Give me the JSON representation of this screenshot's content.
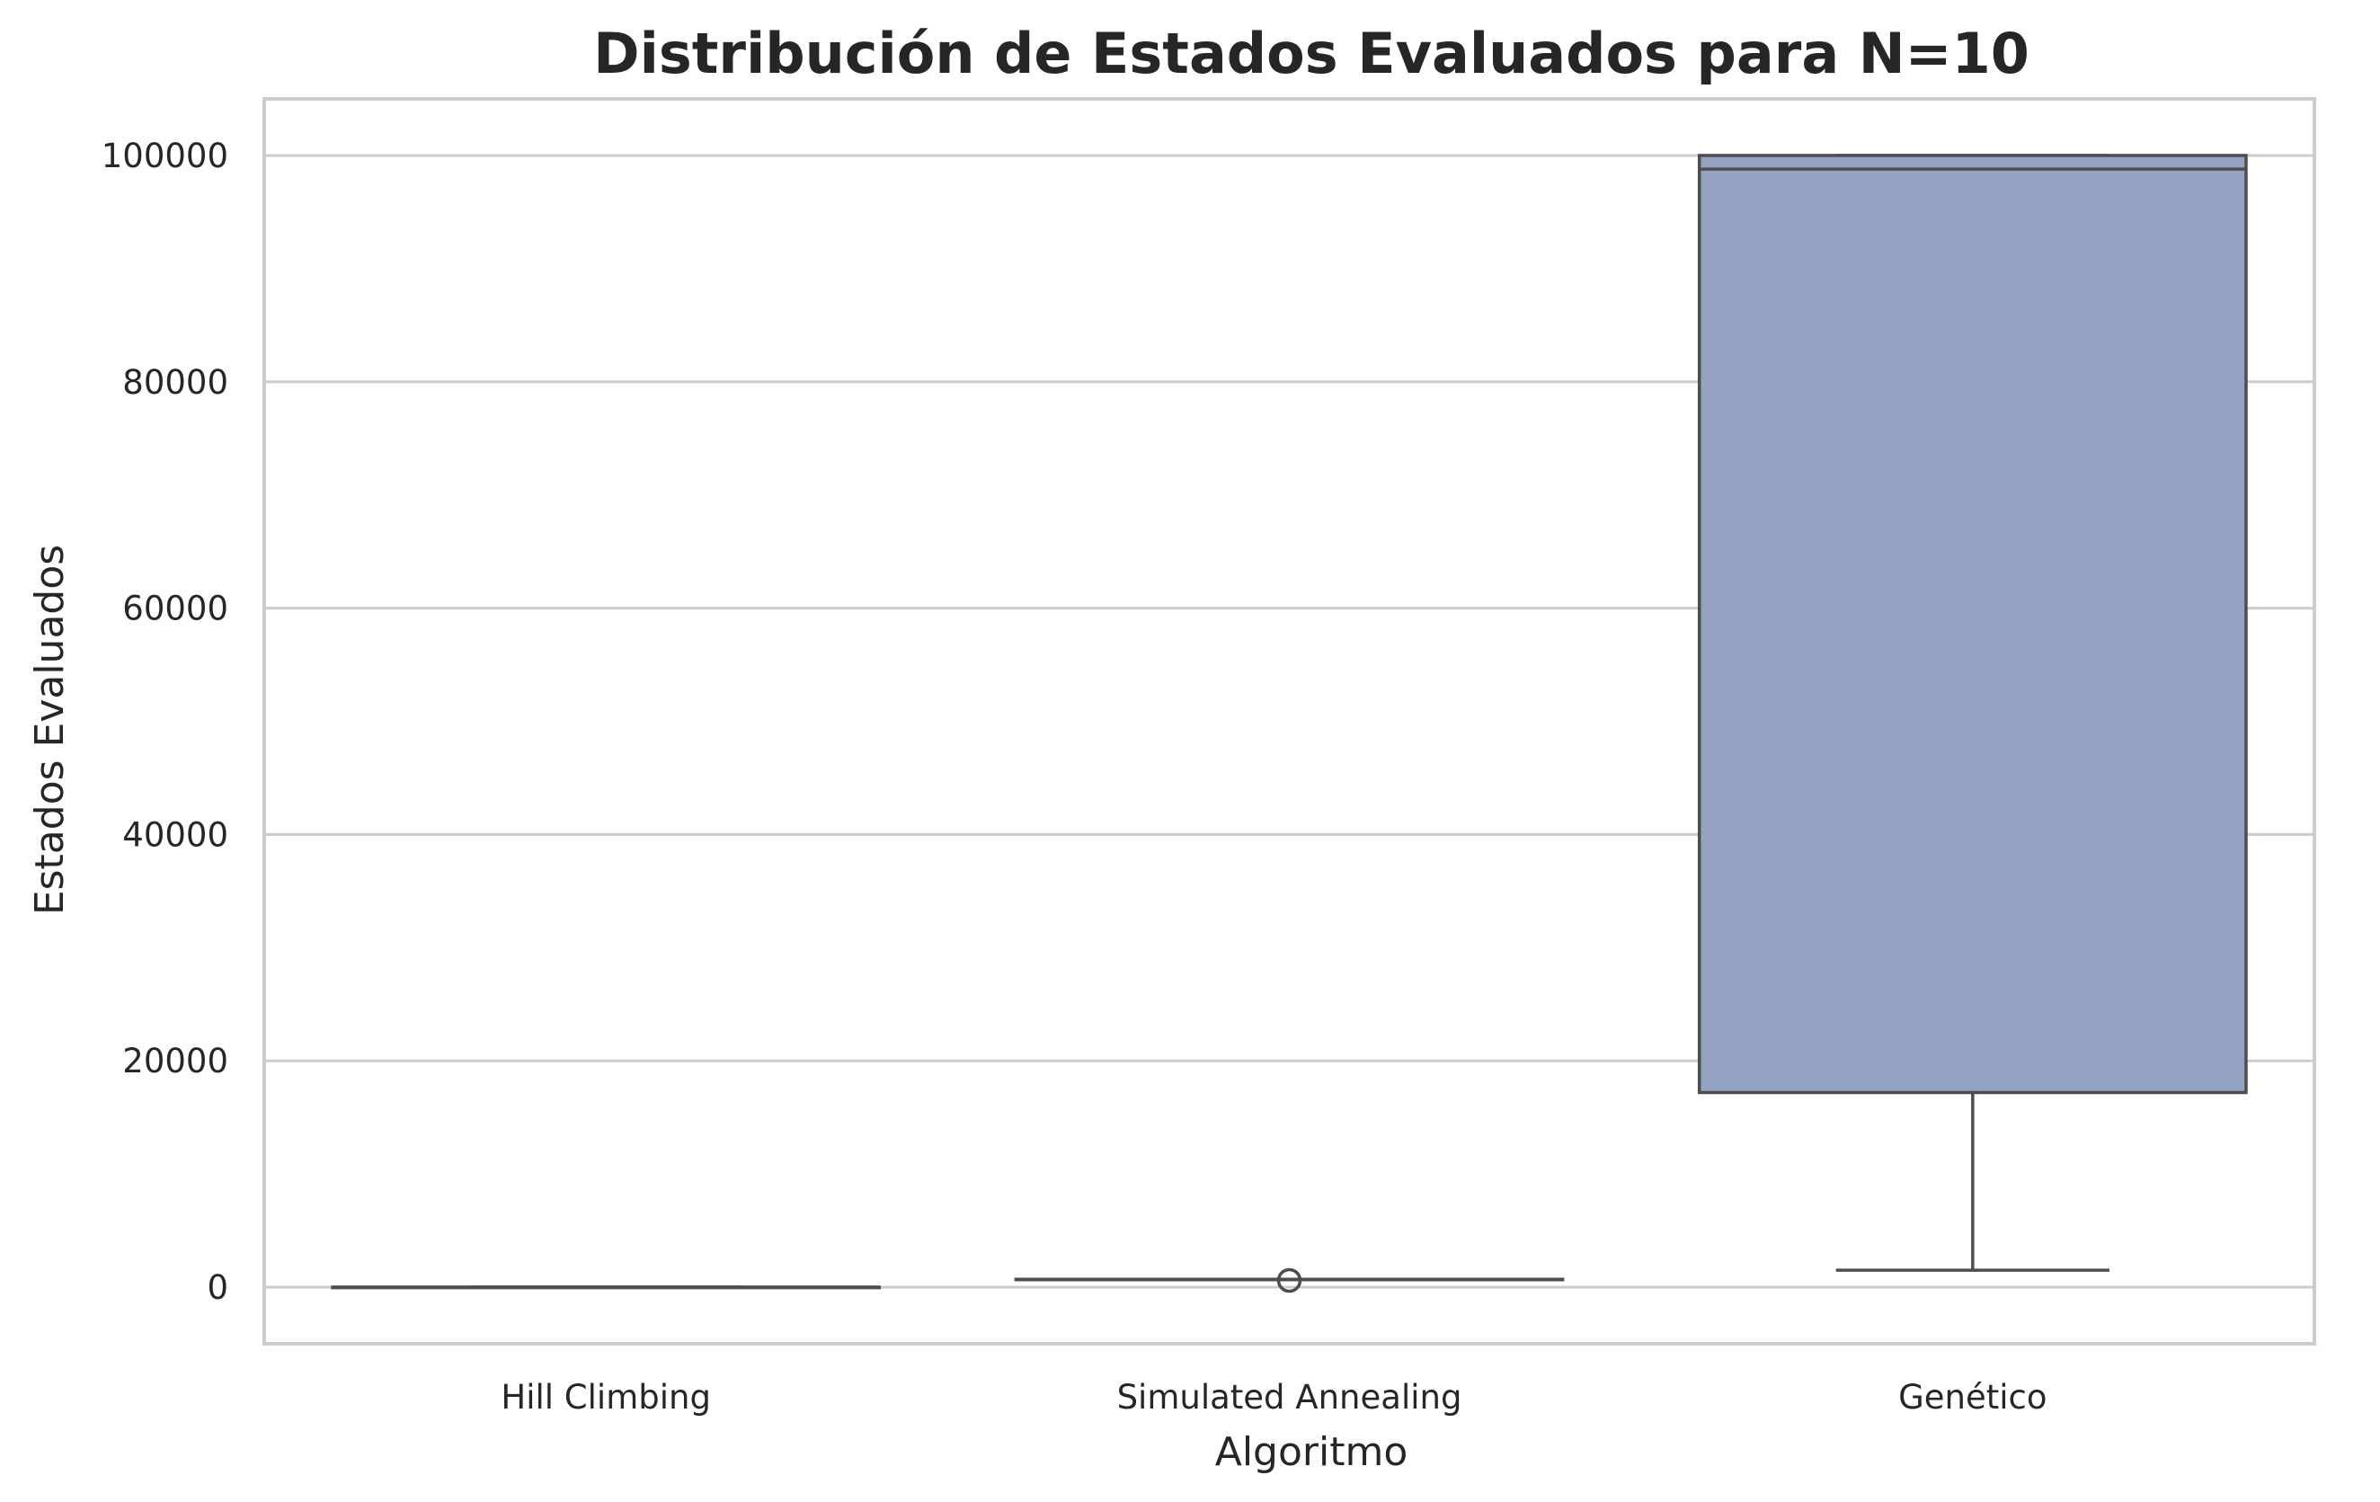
{
  "chart_data": {
    "type": "box",
    "title": "Distribución de Estados Evaluados para N=10",
    "xlabel": "Algoritmo",
    "ylabel": "Estados Evaluados",
    "ylim": [
      -5000,
      105000
    ],
    "yticks": [
      0,
      20000,
      40000,
      60000,
      80000,
      100000
    ],
    "ytick_labels": [
      "0",
      "20000",
      "40000",
      "60000",
      "80000",
      "100000"
    ],
    "grid": "horizontal",
    "categories": [
      "Hill Climbing",
      "Simulated Annealing",
      "Genético"
    ],
    "boxes": [
      {
        "category": "Hill Climbing",
        "whisker_low": 0,
        "q1": 0,
        "median": 0,
        "q3": 0,
        "whisker_high": 0,
        "outliers": []
      },
      {
        "category": "Simulated Annealing",
        "whisker_low": 700,
        "q1": 700,
        "median": 700,
        "q3": 700,
        "whisker_high": 700,
        "outliers": [
          600
        ]
      },
      {
        "category": "Genético",
        "whisker_low": 1500,
        "q1": 17200,
        "median": 98800,
        "q3": 100000,
        "whisker_high": 100000,
        "outliers": []
      }
    ],
    "colors": {
      "box_fill": "#94a3c1",
      "line": "#4d4d4d",
      "grid": "#cccccc",
      "frame": "#cccccc"
    }
  }
}
